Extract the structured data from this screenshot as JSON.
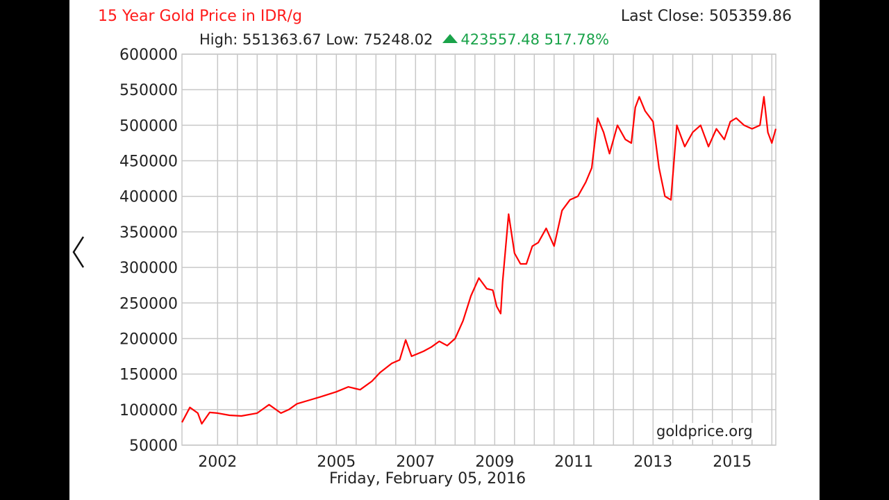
{
  "header": {
    "title": "15 Year Gold Price in IDR/g",
    "last_close": "Last Close: 505359.86",
    "high_low": "High: 551363.67 Low: 75248.02",
    "change": "423557.48 517.78%"
  },
  "footer": {
    "date": "Friday, February 05, 2016",
    "watermark": "goldprice.org"
  },
  "nav": {
    "prev_icon": "chevron-left-icon"
  },
  "colors": {
    "line": "#ff0000",
    "title": "#ff1a1a",
    "positive": "#1aa34a",
    "grid": "#c8c8c8"
  },
  "chart_data": {
    "type": "line",
    "title": "15 Year Gold Price in IDR/g",
    "xlabel": "",
    "ylabel": "",
    "ylim": [
      50000,
      600000
    ],
    "xlim": [
      2001.1,
      2016.1
    ],
    "x_ticks": [
      2002,
      2005,
      2007,
      2009,
      2011,
      2013,
      2015
    ],
    "y_ticks": [
      50000,
      100000,
      150000,
      200000,
      250000,
      300000,
      350000,
      400000,
      450000,
      500000,
      550000,
      600000
    ],
    "grid": true,
    "series": [
      {
        "x": [
          2001.1,
          2001.3,
          2001.5,
          2001.6,
          2001.8,
          2002.0,
          2002.3,
          2002.6,
          2003.0,
          2003.3,
          2003.6,
          2003.8,
          2004.0,
          2004.3,
          2004.6,
          2005.0,
          2005.3,
          2005.6,
          2005.9,
          2006.1,
          2006.4,
          2006.6,
          2006.75,
          2006.9,
          2007.2,
          2007.4,
          2007.6,
          2007.8,
          2008.0,
          2008.2,
          2008.4,
          2008.6,
          2008.8,
          2008.95,
          2009.05,
          2009.15,
          2009.2,
          2009.35,
          2009.5,
          2009.65,
          2009.8,
          2009.95,
          2010.1,
          2010.3,
          2010.5,
          2010.7,
          2010.9,
          2011.1,
          2011.3,
          2011.45,
          2011.6,
          2011.75,
          2011.9,
          2012.1,
          2012.3,
          2012.45,
          2012.55,
          2012.65,
          2012.8,
          2013.0,
          2013.15,
          2013.3,
          2013.45,
          2013.6,
          2013.8,
          2014.0,
          2014.2,
          2014.4,
          2014.6,
          2014.8,
          2014.95,
          2015.1,
          2015.3,
          2015.5,
          2015.7,
          2015.8,
          2015.9,
          2016.0,
          2016.1
        ],
        "y": [
          82000,
          103000,
          95000,
          80000,
          96000,
          95000,
          92000,
          91000,
          95000,
          107000,
          95000,
          100000,
          108000,
          113000,
          118000,
          125000,
          132000,
          128000,
          140000,
          152000,
          165000,
          170000,
          198000,
          175000,
          182000,
          188000,
          196000,
          190000,
          200000,
          225000,
          260000,
          285000,
          270000,
          268000,
          245000,
          235000,
          280000,
          375000,
          320000,
          305000,
          305000,
          330000,
          335000,
          355000,
          330000,
          380000,
          395000,
          400000,
          420000,
          440000,
          510000,
          490000,
          460000,
          500000,
          480000,
          475000,
          525000,
          540000,
          520000,
          505000,
          440000,
          400000,
          395000,
          500000,
          470000,
          490000,
          500000,
          470000,
          495000,
          480000,
          505000,
          510000,
          500000,
          495000,
          500000,
          540000,
          490000,
          475000,
          495000
        ]
      }
    ]
  }
}
